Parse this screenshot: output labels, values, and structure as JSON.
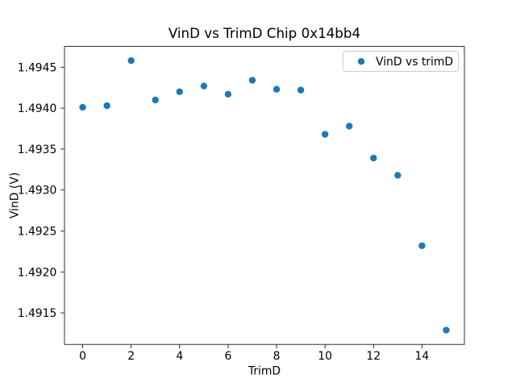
{
  "chart_data": {
    "type": "scatter",
    "title": "VinD vs TrimD Chip 0x14bb4",
    "xlabel": "TrimD",
    "ylabel": "VinD (V)",
    "x": [
      0,
      1,
      2,
      3,
      4,
      5,
      6,
      7,
      8,
      9,
      10,
      11,
      12,
      13,
      14,
      15
    ],
    "y": [
      1.49401,
      1.49403,
      1.49458,
      1.4941,
      1.4942,
      1.49427,
      1.49417,
      1.49434,
      1.49423,
      1.49422,
      1.49368,
      1.49378,
      1.49339,
      1.49318,
      1.49232,
      1.49129
    ],
    "series": [
      {
        "name": "VinD vs trimD",
        "color": "#1f77b4"
      }
    ],
    "xlim": [
      -0.75,
      15.75
    ],
    "ylim": [
      1.491115,
      1.494753
    ],
    "xticks": {
      "values": [
        0,
        2,
        4,
        6,
        8,
        10,
        12,
        14
      ],
      "labels": [
        "0",
        "2",
        "4",
        "6",
        "8",
        "10",
        "12",
        "14"
      ]
    },
    "yticks": {
      "values": [
        1.4945,
        1.494,
        1.4935,
        1.493,
        1.4925,
        1.492,
        1.4915
      ],
      "labels": [
        "1.4945",
        "1.4940",
        "1.4935",
        "1.4930",
        "1.4925",
        "1.4920",
        "1.4915"
      ]
    },
    "grid": false,
    "legend": {
      "position": "upper-right",
      "entries": [
        {
          "label": "VinD vs trimD",
          "marker": "circle",
          "color": "#1f77b4"
        }
      ]
    },
    "marker_color": "#1f77b4",
    "axis_color": "#000000",
    "legend_border_color": "#cccccc",
    "background_color": "#ffffff"
  }
}
